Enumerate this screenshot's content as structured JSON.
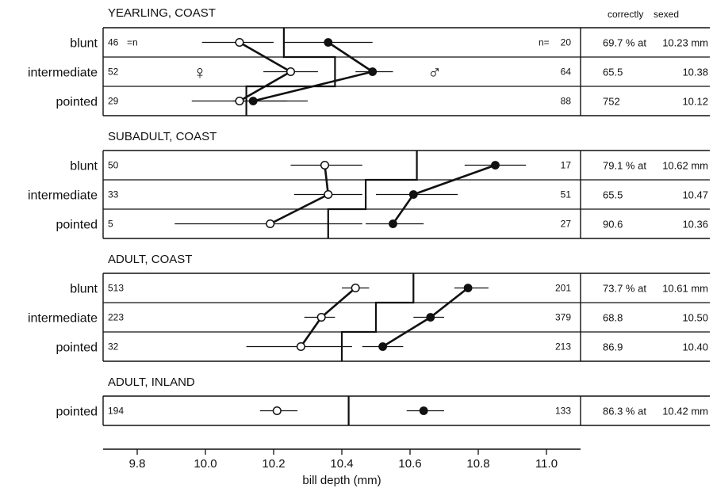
{
  "chart_data": {
    "type": "scatter",
    "xlabel": "bill depth (mm)",
    "xlim": [
      9.7,
      11.1
    ],
    "xticks": [
      "9.8",
      "10.0",
      "10.2",
      "10.4",
      "10.6",
      "10.8",
      "11.0"
    ],
    "xtick_values": [
      9.8,
      10.0,
      10.2,
      10.4,
      10.6,
      10.8,
      11.0
    ],
    "right_header": [
      "correctly",
      "sexed"
    ],
    "female_symbol": "♀",
    "male_symbol": "♂",
    "n_female_label": "=n",
    "n_male_label": "n=",
    "series": [
      {
        "name": "♀",
        "marker": "open circle"
      },
      {
        "name": "♂",
        "marker": "filled circle"
      }
    ],
    "panels": [
      {
        "title": "YEARLING, COAST",
        "rows": [
          {
            "label": "blunt",
            "n_female": "46",
            "n_male": "20",
            "female_mean": 10.1,
            "female_lo": 9.99,
            "female_hi": 10.2,
            "male_mean": 10.36,
            "male_lo": 10.23,
            "male_hi": 10.49,
            "threshold": 10.23,
            "correct": "69.7 % at",
            "cutoff": "10.23 mm"
          },
          {
            "label": "intermediate",
            "n_female": "52",
            "n_male": "64",
            "female_mean": 10.25,
            "female_lo": 10.17,
            "female_hi": 10.33,
            "male_mean": 10.49,
            "male_lo": 10.44,
            "male_hi": 10.55,
            "threshold": 10.38,
            "correct": "65.5",
            "cutoff": "10.38"
          },
          {
            "label": "pointed",
            "n_female": "29",
            "n_male": "88",
            "female_mean": 10.1,
            "female_lo": 9.96,
            "female_hi": 10.24,
            "male_mean": 10.14,
            "male_lo": 10.08,
            "male_hi": 10.3,
            "threshold": 10.12,
            "correct": "752",
            "cutoff": "10.12"
          }
        ]
      },
      {
        "title": "SUBADULT, COAST",
        "rows": [
          {
            "label": "blunt",
            "n_female": "50",
            "n_male": "17",
            "female_mean": 10.35,
            "female_lo": 10.25,
            "female_hi": 10.46,
            "male_mean": 10.85,
            "male_lo": 10.76,
            "male_hi": 10.94,
            "threshold": 10.62,
            "correct": "79.1 % at",
            "cutoff": "10.62 mm"
          },
          {
            "label": "intermediate",
            "n_female": "33",
            "n_male": "51",
            "female_mean": 10.36,
            "female_lo": 10.26,
            "female_hi": 10.46,
            "male_mean": 10.61,
            "male_lo": 10.5,
            "male_hi": 10.74,
            "threshold": 10.47,
            "correct": "65.5",
            "cutoff": "10.47"
          },
          {
            "label": "pointed",
            "n_female": "5",
            "n_male": "27",
            "female_mean": 10.19,
            "female_lo": 9.91,
            "female_hi": 10.46,
            "male_mean": 10.55,
            "male_lo": 10.47,
            "male_hi": 10.64,
            "threshold": 10.36,
            "correct": "90.6",
            "cutoff": "10.36"
          }
        ]
      },
      {
        "title": "ADULT, COAST",
        "rows": [
          {
            "label": "blunt",
            "n_female": "513",
            "n_male": "201",
            "female_mean": 10.44,
            "female_lo": 10.4,
            "female_hi": 10.48,
            "male_mean": 10.77,
            "male_lo": 10.73,
            "male_hi": 10.83,
            "threshold": 10.61,
            "correct": "73.7 % at",
            "cutoff": "10.61 mm"
          },
          {
            "label": "intermediate",
            "n_female": "223",
            "n_male": "379",
            "female_mean": 10.34,
            "female_lo": 10.29,
            "female_hi": 10.38,
            "male_mean": 10.66,
            "male_lo": 10.61,
            "male_hi": 10.7,
            "threshold": 10.5,
            "correct": "68.8",
            "cutoff": "10.50"
          },
          {
            "label": "pointed",
            "n_female": "32",
            "n_male": "213",
            "female_mean": 10.28,
            "female_lo": 10.12,
            "female_hi": 10.43,
            "male_mean": 10.52,
            "male_lo": 10.46,
            "male_hi": 10.58,
            "threshold": 10.4,
            "correct": "86.9",
            "cutoff": "10.40"
          }
        ]
      },
      {
        "title": "ADULT, INLAND",
        "rows": [
          {
            "label": "pointed",
            "n_female": "194",
            "n_male": "133",
            "female_mean": 10.21,
            "female_lo": 10.16,
            "female_hi": 10.27,
            "male_mean": 10.64,
            "male_lo": 10.59,
            "male_hi": 10.7,
            "threshold": 10.42,
            "correct": "86.3 % at",
            "cutoff": "10.42 mm"
          }
        ]
      }
    ]
  }
}
